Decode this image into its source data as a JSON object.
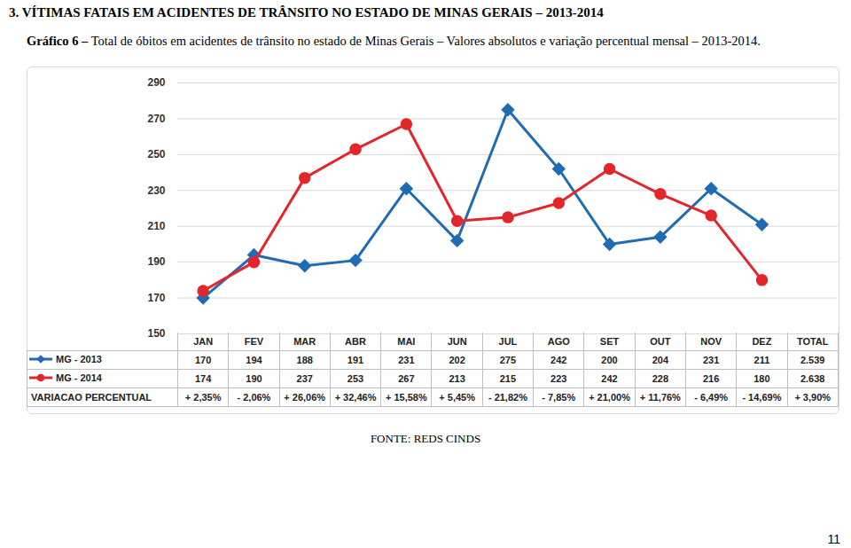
{
  "heading": "3. VÍTIMAS FATAIS EM ACIDENTES DE TRÂNSITO NO ESTADO DE MINAS GERAIS – 2013-2014",
  "chart_data": {
    "type": "line",
    "title": "Gráfico 6 – Total de óbitos em acidentes de trânsito no estado de Minas Gerais – Valores absolutos e variação percentual mensal – 2013-2014.",
    "categories": [
      "JAN",
      "FEV",
      "MAR",
      "ABR",
      "MAI",
      "JUN",
      "JUL",
      "AGO",
      "SET",
      "OUT",
      "NOV",
      "DEZ"
    ],
    "series": [
      {
        "name": "MG - 2013",
        "color": "#1f6cb4",
        "marker": "diamond",
        "values": [
          170,
          194,
          188,
          191,
          231,
          202,
          275,
          242,
          200,
          204,
          231,
          211
        ]
      },
      {
        "name": "MG - 2014",
        "color": "#e3262a",
        "marker": "circle",
        "values": [
          174,
          190,
          237,
          253,
          267,
          213,
          215,
          223,
          242,
          228,
          216,
          180
        ]
      }
    ],
    "ylim": [
      150,
      290
    ],
    "yticks": [
      150,
      170,
      190,
      210,
      230,
      250,
      270,
      290
    ],
    "grid": true,
    "tick_labels": "y"
  },
  "table": {
    "total_header": "TOTAL",
    "totals": [
      "2.539",
      "2.638"
    ],
    "variation_label": "VARIACAO PERCENTUAL",
    "variation": [
      "+ 2,35%",
      "- 2,06%",
      "+ 26,06%",
      "+ 32,46%",
      "+ 15,58%",
      "+ 5,45%",
      "- 21,82%",
      "- 7,85%",
      "+ 21,00%",
      "+ 11,76%",
      "- 6,49%",
      "- 14,69%"
    ],
    "variation_total": "+ 3,90%"
  },
  "source": "FONTE: REDS CINDS",
  "page": "11"
}
